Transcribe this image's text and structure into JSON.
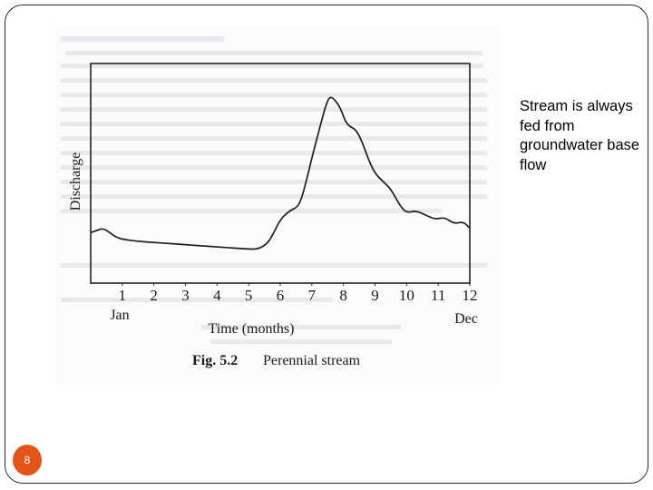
{
  "slide": {
    "side_text": "Stream is always fed from groundwater base flow",
    "page_number": "8",
    "accent_color": "#e2541a"
  },
  "chart_data": {
    "type": "line",
    "title": "",
    "caption_label": "Fig. 5.2",
    "caption_text": "Perennial stream",
    "xlabel": "Time (months)",
    "ylabel": "Discharge",
    "x_ticks": [
      "1",
      "2",
      "3",
      "4",
      "5",
      "6",
      "7",
      "8",
      "9",
      "10",
      "11",
      "12"
    ],
    "x_start_label": "Jan",
    "x_end_label": "Dec",
    "xlim": [
      0,
      12
    ],
    "ylim": [
      0,
      100
    ],
    "grid": false,
    "series": [
      {
        "x": [
          0.0,
          0.2,
          0.4,
          0.6,
          0.8,
          1.0,
          1.5,
          2.0,
          2.5,
          3.0,
          3.5,
          4.0,
          4.5,
          5.0,
          5.3,
          5.6,
          5.8,
          6.0,
          6.3,
          6.6,
          6.8,
          7.0,
          7.2,
          7.4,
          7.55,
          7.7,
          7.9,
          8.1,
          8.4,
          8.6,
          8.8,
          9.0,
          9.2,
          9.5,
          9.8,
          10.0,
          10.3,
          10.6,
          10.9,
          11.2,
          11.5,
          11.8,
          12.0
        ],
        "y": [
          23,
          24,
          25,
          23,
          21,
          20,
          19,
          18.5,
          18,
          17.5,
          17,
          16.5,
          16,
          15.5,
          15.5,
          18,
          23,
          29,
          33,
          35,
          45,
          57,
          68,
          79,
          85,
          84,
          80,
          72,
          70,
          64,
          56,
          50,
          47,
          43,
          35,
          32,
          33,
          31,
          29,
          30,
          27,
          28,
          25
        ]
      }
    ]
  }
}
